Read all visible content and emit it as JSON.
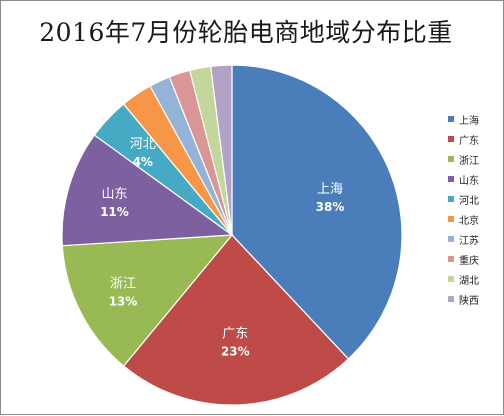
{
  "chart_data": {
    "type": "pie",
    "title": "2016年7月份轮胎电商地域分布比重",
    "legend_position": "right",
    "slices": [
      {
        "name": "上海",
        "value": 38,
        "label": "38%",
        "color": "#4a7ebb",
        "show_label": true
      },
      {
        "name": "广东",
        "value": 23,
        "label": "23%",
        "color": "#be4b48",
        "show_label": true
      },
      {
        "name": "浙江",
        "value": 13,
        "label": "13%",
        "color": "#98b954",
        "show_label": true
      },
      {
        "name": "山东",
        "value": 11,
        "label": "11%",
        "color": "#7d60a0",
        "show_label": true
      },
      {
        "name": "河北",
        "value": 4,
        "label": "4%",
        "color": "#46aac4",
        "show_label": true
      },
      {
        "name": "北京",
        "value": 3,
        "label": "",
        "color": "#f79646",
        "show_label": false
      },
      {
        "name": "江苏",
        "value": 2,
        "label": "",
        "color": "#95b3d7",
        "show_label": false
      },
      {
        "name": "重庆",
        "value": 2,
        "label": "",
        "color": "#d99694",
        "show_label": false
      },
      {
        "name": "湖北",
        "value": 2,
        "label": "",
        "color": "#c3d69b",
        "show_label": false
      },
      {
        "name": "陕西",
        "value": 2,
        "label": "",
        "color": "#b3a2c7",
        "show_label": false
      }
    ]
  }
}
